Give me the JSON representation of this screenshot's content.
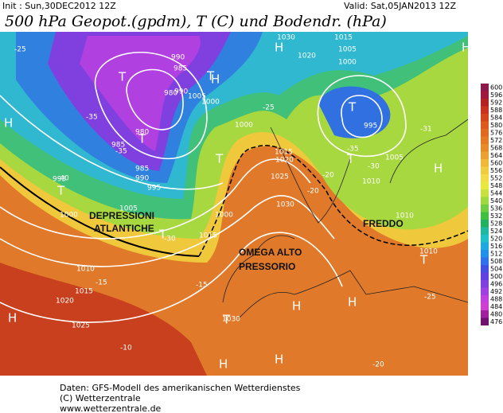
{
  "header": {
    "init": "Init : Sun,30DEC2012 12Z",
    "valid": "Valid: Sat,05JAN2013 12Z",
    "title": "500 hPa Geopot.(gpdm), T (C) und Bodendr. (hPa)"
  },
  "map": {
    "labels": [
      "1030",
      "1015",
      "1020",
      "990",
      "985",
      "990",
      "980",
      "1005",
      "1000",
      "980",
      "985",
      "985",
      "990",
      "995",
      "995",
      "1000",
      "1005",
      "1000",
      "1015",
      "1015",
      "1020",
      "1025",
      "1030",
      "1005",
      "1000",
      "995",
      "1000",
      "1005",
      "1010",
      "1010",
      "1010",
      "1010",
      "1015",
      "1020",
      "1025",
      "1030",
      "-25",
      "-35",
      "-40",
      "-35",
      "-30",
      "-20",
      "-15",
      "-10",
      "-20",
      "-25",
      "-30",
      "-35",
      "-31",
      "-25",
      "-20",
      "-15"
    ],
    "letters": [
      "H",
      "T",
      "T",
      "T",
      "T",
      "T",
      "T",
      "H",
      "H",
      "T",
      "T",
      "H",
      "H",
      "T",
      "H",
      "H",
      "H",
      "T",
      "H",
      "H"
    ],
    "annotations": [
      [
        "DEPRESSIONI",
        "ATLANTICHE"
      ],
      [
        "OMEGA ALTO",
        "PRESSORIO"
      ],
      [
        "FREDDO"
      ]
    ]
  },
  "colorbar": {
    "values": [
      600,
      596,
      592,
      588,
      584,
      580,
      576,
      572,
      568,
      564,
      560,
      556,
      552,
      548,
      544,
      540,
      536,
      532,
      528,
      524,
      520,
      516,
      512,
      508,
      504,
      500,
      496,
      492,
      488,
      484,
      480,
      476
    ],
    "colors": [
      "#8b1a4a",
      "#a01a40",
      "#b22222",
      "#c8321e",
      "#d4451c",
      "#dc5a1e",
      "#e06a20",
      "#e47a22",
      "#e88a28",
      "#eca030",
      "#f0b838",
      "#f2cc40",
      "#f4dc48",
      "#e8e840",
      "#c8e040",
      "#a0d840",
      "#70cc40",
      "#40c040",
      "#20b060",
      "#20b8a0",
      "#20c0c8",
      "#20a8e0",
      "#2090e8",
      "#3070e8",
      "#4050e0",
      "#6040e0",
      "#8040e0",
      "#a040e0",
      "#c040e0",
      "#d040d0",
      "#a020a0",
      "#701070"
    ]
  },
  "footer": [
    "Daten: GFS-Modell des amerikanischen Wetterdienstes",
    "(C) Wetterzentrale",
    "www.wetterzentrale.de"
  ]
}
